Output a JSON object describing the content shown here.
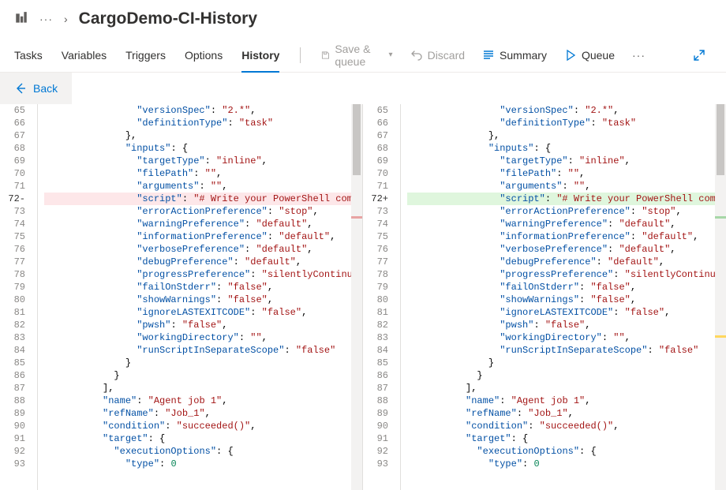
{
  "breadcrumb": {
    "overflow": "···",
    "chevron": "›",
    "title": "CargoDemo-CI-History"
  },
  "tabs": [
    "Tasks",
    "Variables",
    "Triggers",
    "Options",
    "History"
  ],
  "activeTab": 4,
  "commands": {
    "saveQueue": "Save & queue",
    "discard": "Discard",
    "summary": "Summary",
    "queue": "Queue"
  },
  "back": "Back",
  "lineStart": 65,
  "lineEnd": 93,
  "changedLine": 72,
  "codeLines": [
    {
      "i": 4,
      "txt": "\"versionSpec\": \"2.*\","
    },
    {
      "i": 4,
      "txt": "\"definitionType\": \"task\""
    },
    {
      "i": 3,
      "txt": "},"
    },
    {
      "i": 3,
      "txt": "\"inputs\": {"
    },
    {
      "i": 4,
      "txt": "\"targetType\": \"inline\","
    },
    {
      "i": 4,
      "txt": "\"filePath\": \"\","
    },
    {
      "i": 4,
      "txt": "\"arguments\": \"\","
    },
    {
      "i": 4,
      "txt": "\"script\": \"# Write your PowerShell commands here",
      "changed": true
    },
    {
      "i": 4,
      "txt": "\"errorActionPreference\": \"stop\","
    },
    {
      "i": 4,
      "txt": "\"warningPreference\": \"default\","
    },
    {
      "i": 4,
      "txt": "\"informationPreference\": \"default\","
    },
    {
      "i": 4,
      "txt": "\"verbosePreference\": \"default\","
    },
    {
      "i": 4,
      "txt": "\"debugPreference\": \"default\","
    },
    {
      "i": 4,
      "txt": "\"progressPreference\": \"silentlyContinue\","
    },
    {
      "i": 4,
      "txt": "\"failOnStderr\": \"false\","
    },
    {
      "i": 4,
      "txt": "\"showWarnings\": \"false\","
    },
    {
      "i": 4,
      "txt": "\"ignoreLASTEXITCODE\": \"false\","
    },
    {
      "i": 4,
      "txt": "\"pwsh\": \"false\","
    },
    {
      "i": 4,
      "txt": "\"workingDirectory\": \"\","
    },
    {
      "i": 4,
      "txt": "\"runScriptInSeparateScope\": \"false\""
    },
    {
      "i": 3,
      "txt": "}"
    },
    {
      "i": 2,
      "txt": "}"
    },
    {
      "i": 1,
      "txt": "],"
    },
    {
      "i": 1,
      "txt": "\"name\": \"Agent job 1\","
    },
    {
      "i": 1,
      "txt": "\"refName\": \"Job_1\","
    },
    {
      "i": 1,
      "txt": "\"condition\": \"succeeded()\","
    },
    {
      "i": 1,
      "txt": "\"target\": {"
    },
    {
      "i": 2,
      "txt": "\"executionOptions\": {"
    },
    {
      "i": 3,
      "txt": "\"type\": 0"
    }
  ],
  "indentUnit": "  ",
  "baseIndentLeft": "        ",
  "baseIndentRight": "        ",
  "colors": {
    "accent": "#0078d4",
    "delBg": "#fde7e9",
    "addBg": "#dff6dd",
    "key": "#0451a5",
    "string": "#a31515",
    "number": "#098658"
  },
  "scrollMarkers": {
    "left": [
      {
        "t": 0.29,
        "c": "red"
      }
    ],
    "right": [
      {
        "t": 0.29,
        "c": "grn"
      },
      {
        "t": 0.6,
        "c": "yel"
      }
    ]
  }
}
